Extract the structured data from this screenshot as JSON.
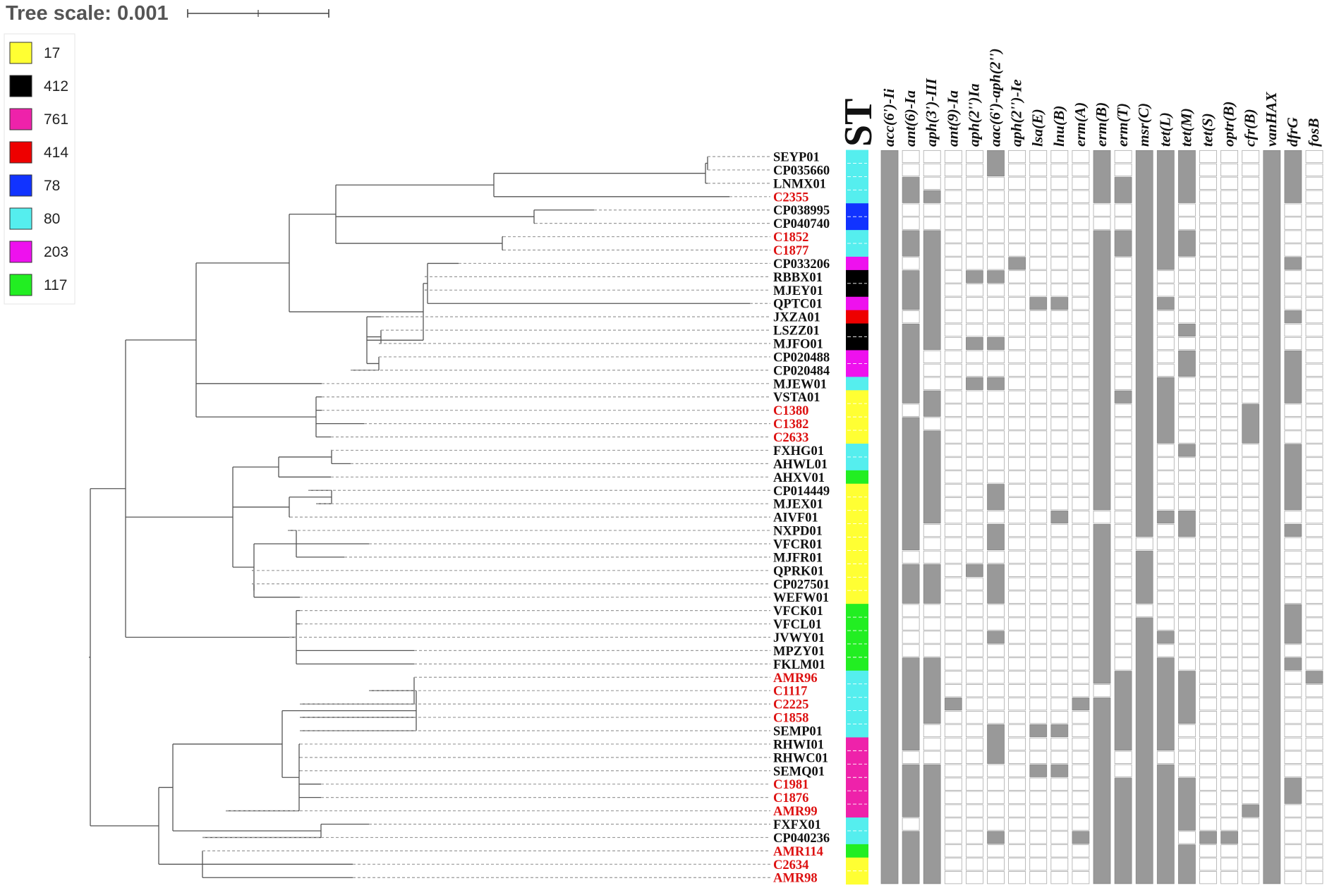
{
  "tree_scale": {
    "label": "Tree scale: 0.001"
  },
  "st_header": "ST",
  "colors": {
    "label_ref": "#111111",
    "label_study": "#dd1111",
    "presence": "#999999",
    "absence": "#ffffff"
  },
  "legend": [
    {
      "label": "17",
      "color": "#ffff33"
    },
    {
      "label": "412",
      "color": "#000000"
    },
    {
      "label": "761",
      "color": "#ee22aa"
    },
    {
      "label": "414",
      "color": "#ee0000"
    },
    {
      "label": "78",
      "color": "#1133ff"
    },
    {
      "label": "80",
      "color": "#55eeee"
    },
    {
      "label": "203",
      "color": "#ee11ee"
    },
    {
      "label": "117",
      "color": "#22ee22"
    }
  ],
  "genes": [
    "acc(6')-Ii",
    "ant(6)-Ia",
    "aph(3')-III",
    "ant(9)-Ia",
    "aph(2'')Ia",
    "aac(6')-aph(2'')",
    "aph(2'')-Ie",
    "lsa(E)",
    "lnu(B)",
    "erm(A)",
    "erm(B)",
    "erm(T)",
    "msr(C)",
    "tet(L)",
    "tet(M)",
    "tet(S)",
    "optr(B)",
    "cfr(B)",
    "vanHAX",
    "dfrG",
    "fosB"
  ],
  "isolates": [
    {
      "name": "SEYP01",
      "study": false,
      "st": "80",
      "genes": [
        1,
        0,
        0,
        0,
        0,
        1,
        0,
        0,
        0,
        0,
        1,
        0,
        1,
        1,
        1,
        0,
        0,
        0,
        1,
        1,
        0
      ]
    },
    {
      "name": "CP035660",
      "study": false,
      "st": "80",
      "genes": [
        1,
        0,
        0,
        0,
        0,
        1,
        0,
        0,
        0,
        0,
        1,
        0,
        1,
        1,
        1,
        0,
        0,
        0,
        1,
        1,
        0
      ]
    },
    {
      "name": "LNMX01",
      "study": false,
      "st": "80",
      "genes": [
        1,
        1,
        0,
        0,
        0,
        0,
        0,
        0,
        0,
        0,
        1,
        1,
        1,
        1,
        1,
        0,
        0,
        0,
        1,
        1,
        0
      ]
    },
    {
      "name": "C2355",
      "study": true,
      "st": "80",
      "genes": [
        1,
        1,
        1,
        0,
        0,
        0,
        0,
        0,
        0,
        0,
        1,
        1,
        1,
        1,
        1,
        0,
        0,
        0,
        1,
        1,
        0
      ]
    },
    {
      "name": "CP038995",
      "study": false,
      "st": "78",
      "genes": [
        1,
        0,
        0,
        0,
        0,
        0,
        0,
        0,
        0,
        0,
        0,
        0,
        1,
        1,
        0,
        0,
        0,
        0,
        1,
        0,
        0
      ]
    },
    {
      "name": "CP040740",
      "study": false,
      "st": "78",
      "genes": [
        1,
        0,
        0,
        0,
        0,
        0,
        0,
        0,
        0,
        0,
        0,
        0,
        1,
        1,
        0,
        0,
        0,
        0,
        1,
        0,
        0
      ]
    },
    {
      "name": "C1852",
      "study": true,
      "st": "80",
      "genes": [
        1,
        1,
        1,
        0,
        0,
        0,
        0,
        0,
        0,
        0,
        1,
        1,
        1,
        1,
        1,
        0,
        0,
        0,
        1,
        0,
        0
      ]
    },
    {
      "name": "C1877",
      "study": true,
      "st": "80",
      "genes": [
        1,
        1,
        1,
        0,
        0,
        0,
        0,
        0,
        0,
        0,
        1,
        1,
        1,
        1,
        1,
        0,
        0,
        0,
        1,
        0,
        0
      ]
    },
    {
      "name": "CP033206",
      "study": false,
      "st": "203",
      "genes": [
        1,
        0,
        1,
        0,
        0,
        0,
        1,
        0,
        0,
        0,
        1,
        0,
        1,
        1,
        0,
        0,
        0,
        0,
        1,
        1,
        0
      ]
    },
    {
      "name": "RBBX01",
      "study": false,
      "st": "412",
      "genes": [
        1,
        1,
        1,
        0,
        1,
        1,
        0,
        0,
        0,
        0,
        1,
        0,
        1,
        0,
        0,
        0,
        0,
        0,
        1,
        0,
        0
      ]
    },
    {
      "name": "MJEY01",
      "study": false,
      "st": "412",
      "genes": [
        1,
        1,
        1,
        0,
        0,
        0,
        0,
        0,
        0,
        0,
        1,
        0,
        1,
        0,
        0,
        0,
        0,
        0,
        1,
        0,
        0
      ]
    },
    {
      "name": "QPTC01",
      "study": false,
      "st": "203",
      "genes": [
        1,
        1,
        1,
        0,
        0,
        0,
        0,
        1,
        1,
        0,
        1,
        0,
        1,
        1,
        0,
        0,
        0,
        0,
        1,
        0,
        0
      ]
    },
    {
      "name": "JXZA01",
      "study": false,
      "st": "414",
      "genes": [
        1,
        0,
        1,
        0,
        0,
        0,
        0,
        0,
        0,
        0,
        1,
        0,
        1,
        0,
        0,
        0,
        0,
        0,
        1,
        1,
        0
      ]
    },
    {
      "name": "LSZZ01",
      "study": false,
      "st": "412",
      "genes": [
        1,
        1,
        1,
        0,
        0,
        0,
        0,
        0,
        0,
        0,
        1,
        0,
        1,
        0,
        1,
        0,
        0,
        0,
        1,
        0,
        0
      ]
    },
    {
      "name": "MJFO01",
      "study": false,
      "st": "412",
      "genes": [
        1,
        1,
        1,
        0,
        1,
        1,
        0,
        0,
        0,
        0,
        1,
        0,
        1,
        0,
        0,
        0,
        0,
        0,
        1,
        0,
        0
      ]
    },
    {
      "name": "CP020488",
      "study": false,
      "st": "203",
      "genes": [
        1,
        1,
        0,
        0,
        0,
        0,
        0,
        0,
        0,
        0,
        1,
        0,
        1,
        0,
        1,
        0,
        0,
        0,
        1,
        1,
        0
      ]
    },
    {
      "name": "CP020484",
      "study": false,
      "st": "203",
      "genes": [
        1,
        1,
        0,
        0,
        0,
        0,
        0,
        0,
        0,
        0,
        1,
        0,
        1,
        0,
        1,
        0,
        0,
        0,
        1,
        1,
        0
      ]
    },
    {
      "name": "MJEW01",
      "study": false,
      "st": "80",
      "genes": [
        1,
        1,
        0,
        0,
        1,
        1,
        0,
        0,
        0,
        0,
        1,
        0,
        1,
        1,
        0,
        0,
        0,
        0,
        1,
        1,
        0
      ]
    },
    {
      "name": "VSTA01",
      "study": false,
      "st": "17",
      "genes": [
        1,
        1,
        1,
        0,
        0,
        0,
        0,
        0,
        0,
        0,
        1,
        1,
        1,
        1,
        0,
        0,
        0,
        0,
        1,
        1,
        0
      ]
    },
    {
      "name": "C1380",
      "study": true,
      "st": "17",
      "genes": [
        1,
        0,
        1,
        0,
        0,
        0,
        0,
        0,
        0,
        0,
        1,
        0,
        1,
        1,
        0,
        0,
        0,
        1,
        1,
        0,
        0
      ]
    },
    {
      "name": "C1382",
      "study": true,
      "st": "17",
      "genes": [
        1,
        1,
        0,
        0,
        0,
        0,
        0,
        0,
        0,
        0,
        1,
        0,
        1,
        1,
        0,
        0,
        0,
        1,
        1,
        0,
        0
      ]
    },
    {
      "name": "C2633",
      "study": true,
      "st": "17",
      "genes": [
        1,
        1,
        1,
        0,
        0,
        0,
        0,
        0,
        0,
        0,
        1,
        0,
        1,
        1,
        0,
        0,
        0,
        1,
        1,
        0,
        0
      ]
    },
    {
      "name": "FXHG01",
      "study": false,
      "st": "80",
      "genes": [
        1,
        1,
        1,
        0,
        0,
        0,
        0,
        0,
        0,
        0,
        1,
        0,
        1,
        0,
        1,
        0,
        0,
        0,
        1,
        1,
        0
      ]
    },
    {
      "name": "AHWL01",
      "study": false,
      "st": "80",
      "genes": [
        1,
        1,
        1,
        0,
        0,
        0,
        0,
        0,
        0,
        0,
        1,
        0,
        1,
        0,
        0,
        0,
        0,
        0,
        1,
        1,
        0
      ]
    },
    {
      "name": "AHXV01",
      "study": false,
      "st": "117",
      "genes": [
        1,
        1,
        1,
        0,
        0,
        0,
        0,
        0,
        0,
        0,
        1,
        0,
        1,
        0,
        0,
        0,
        0,
        0,
        1,
        1,
        0
      ]
    },
    {
      "name": "CP014449",
      "study": false,
      "st": "17",
      "genes": [
        1,
        1,
        1,
        0,
        0,
        1,
        0,
        0,
        0,
        0,
        1,
        0,
        1,
        0,
        0,
        0,
        0,
        0,
        1,
        1,
        0
      ]
    },
    {
      "name": "MJEX01",
      "study": false,
      "st": "17",
      "genes": [
        1,
        1,
        1,
        0,
        0,
        1,
        0,
        0,
        0,
        0,
        1,
        0,
        1,
        0,
        0,
        0,
        0,
        0,
        1,
        1,
        0
      ]
    },
    {
      "name": "AIVF01",
      "study": false,
      "st": "17",
      "genes": [
        1,
        1,
        1,
        0,
        0,
        0,
        0,
        0,
        1,
        0,
        0,
        0,
        1,
        1,
        1,
        0,
        0,
        0,
        1,
        0,
        0
      ]
    },
    {
      "name": "NXPD01",
      "study": false,
      "st": "17",
      "genes": [
        1,
        1,
        0,
        0,
        0,
        1,
        0,
        0,
        0,
        0,
        1,
        0,
        1,
        0,
        1,
        0,
        0,
        0,
        1,
        1,
        0
      ]
    },
    {
      "name": "VFCR01",
      "study": false,
      "st": "17",
      "genes": [
        1,
        1,
        0,
        0,
        0,
        1,
        0,
        0,
        0,
        0,
        1,
        0,
        0,
        0,
        0,
        0,
        0,
        0,
        1,
        0,
        0
      ]
    },
    {
      "name": "MJFR01",
      "study": false,
      "st": "17",
      "genes": [
        1,
        0,
        0,
        0,
        0,
        0,
        0,
        0,
        0,
        0,
        1,
        0,
        1,
        0,
        0,
        0,
        0,
        0,
        1,
        0,
        0
      ]
    },
    {
      "name": "QPRK01",
      "study": false,
      "st": "17",
      "genes": [
        1,
        1,
        1,
        0,
        1,
        1,
        0,
        0,
        0,
        0,
        1,
        0,
        1,
        0,
        0,
        0,
        0,
        0,
        1,
        0,
        0
      ]
    },
    {
      "name": "CP027501",
      "study": false,
      "st": "17",
      "genes": [
        1,
        1,
        1,
        0,
        0,
        1,
        0,
        0,
        0,
        0,
        1,
        0,
        1,
        0,
        0,
        0,
        0,
        0,
        1,
        0,
        0
      ]
    },
    {
      "name": "WEFW01",
      "study": false,
      "st": "17",
      "genes": [
        1,
        1,
        1,
        0,
        0,
        1,
        0,
        0,
        0,
        0,
        1,
        0,
        1,
        0,
        0,
        0,
        0,
        0,
        1,
        0,
        0
      ]
    },
    {
      "name": "VFCK01",
      "study": false,
      "st": "117",
      "genes": [
        1,
        0,
        0,
        0,
        0,
        0,
        0,
        0,
        0,
        0,
        1,
        0,
        0,
        0,
        0,
        0,
        0,
        0,
        1,
        1,
        0
      ]
    },
    {
      "name": "VFCL01",
      "study": false,
      "st": "117",
      "genes": [
        1,
        0,
        0,
        0,
        0,
        0,
        0,
        0,
        0,
        0,
        1,
        0,
        1,
        0,
        0,
        0,
        0,
        0,
        1,
        1,
        0
      ]
    },
    {
      "name": "JVWY01",
      "study": false,
      "st": "117",
      "genes": [
        1,
        0,
        0,
        0,
        0,
        1,
        0,
        0,
        0,
        0,
        1,
        0,
        1,
        1,
        0,
        0,
        0,
        0,
        1,
        1,
        0
      ]
    },
    {
      "name": "MPZY01",
      "study": false,
      "st": "117",
      "genes": [
        1,
        0,
        0,
        0,
        0,
        0,
        0,
        0,
        0,
        0,
        1,
        0,
        1,
        0,
        0,
        0,
        0,
        0,
        1,
        0,
        0
      ]
    },
    {
      "name": "FKLM01",
      "study": false,
      "st": "117",
      "genes": [
        1,
        1,
        1,
        0,
        0,
        0,
        0,
        0,
        0,
        0,
        1,
        0,
        1,
        1,
        0,
        0,
        0,
        0,
        1,
        1,
        0
      ]
    },
    {
      "name": "AMR96",
      "study": true,
      "st": "80",
      "genes": [
        1,
        1,
        1,
        0,
        0,
        0,
        0,
        0,
        0,
        0,
        1,
        1,
        1,
        1,
        1,
        0,
        0,
        0,
        1,
        0,
        1
      ]
    },
    {
      "name": "C1117",
      "study": true,
      "st": "80",
      "genes": [
        1,
        1,
        1,
        0,
        0,
        0,
        0,
        0,
        0,
        0,
        0,
        1,
        1,
        1,
        1,
        0,
        0,
        0,
        1,
        0,
        0
      ]
    },
    {
      "name": "C2225",
      "study": true,
      "st": "80",
      "genes": [
        1,
        1,
        1,
        1,
        0,
        0,
        0,
        0,
        0,
        1,
        1,
        1,
        1,
        1,
        1,
        0,
        0,
        0,
        1,
        0,
        0
      ]
    },
    {
      "name": "C1858",
      "study": true,
      "st": "80",
      "genes": [
        1,
        1,
        1,
        0,
        0,
        0,
        0,
        0,
        0,
        0,
        1,
        1,
        1,
        1,
        1,
        0,
        0,
        0,
        1,
        0,
        0
      ]
    },
    {
      "name": "SEMP01",
      "study": false,
      "st": "80",
      "genes": [
        1,
        1,
        0,
        0,
        0,
        1,
        0,
        1,
        1,
        0,
        1,
        1,
        1,
        1,
        0,
        0,
        0,
        0,
        1,
        0,
        0
      ]
    },
    {
      "name": "RHWI01",
      "study": false,
      "st": "761",
      "genes": [
        1,
        1,
        0,
        0,
        0,
        1,
        0,
        0,
        0,
        0,
        1,
        1,
        1,
        1,
        0,
        0,
        0,
        0,
        1,
        0,
        0
      ]
    },
    {
      "name": "RHWC01",
      "study": false,
      "st": "761",
      "genes": [
        1,
        0,
        0,
        0,
        0,
        1,
        0,
        0,
        0,
        0,
        1,
        0,
        1,
        0,
        0,
        0,
        0,
        0,
        1,
        0,
        0
      ]
    },
    {
      "name": "SEMQ01",
      "study": false,
      "st": "761",
      "genes": [
        1,
        1,
        1,
        0,
        0,
        0,
        0,
        1,
        1,
        0,
        1,
        0,
        1,
        1,
        0,
        0,
        0,
        0,
        1,
        0,
        0
      ]
    },
    {
      "name": "C1981",
      "study": true,
      "st": "761",
      "genes": [
        1,
        1,
        1,
        0,
        0,
        0,
        0,
        0,
        0,
        0,
        1,
        1,
        1,
        1,
        1,
        0,
        0,
        0,
        1,
        1,
        0
      ]
    },
    {
      "name": "C1876",
      "study": true,
      "st": "761",
      "genes": [
        1,
        1,
        1,
        0,
        0,
        0,
        0,
        0,
        0,
        0,
        1,
        1,
        1,
        1,
        1,
        0,
        0,
        0,
        1,
        1,
        0
      ]
    },
    {
      "name": "AMR99",
      "study": true,
      "st": "761",
      "genes": [
        1,
        1,
        1,
        0,
        0,
        0,
        0,
        0,
        0,
        0,
        1,
        1,
        1,
        1,
        1,
        0,
        0,
        1,
        1,
        0,
        0
      ]
    },
    {
      "name": "FXFX01",
      "study": false,
      "st": "80",
      "genes": [
        1,
        0,
        1,
        0,
        0,
        0,
        0,
        0,
        0,
        0,
        1,
        1,
        1,
        1,
        1,
        0,
        0,
        0,
        1,
        0,
        0
      ]
    },
    {
      "name": "CP040236",
      "study": false,
      "st": "80",
      "genes": [
        1,
        1,
        1,
        0,
        0,
        1,
        0,
        0,
        0,
        1,
        1,
        1,
        1,
        1,
        0,
        1,
        1,
        0,
        1,
        0,
        0
      ]
    },
    {
      "name": "AMR114",
      "study": true,
      "st": "117",
      "genes": [
        1,
        1,
        1,
        0,
        0,
        0,
        0,
        0,
        0,
        0,
        1,
        1,
        1,
        1,
        1,
        0,
        0,
        0,
        1,
        0,
        0
      ]
    },
    {
      "name": "C2634",
      "study": true,
      "st": "17",
      "genes": [
        1,
        1,
        1,
        0,
        0,
        0,
        0,
        0,
        0,
        0,
        1,
        1,
        1,
        1,
        1,
        0,
        0,
        0,
        1,
        0,
        0
      ]
    },
    {
      "name": "AMR98",
      "study": true,
      "st": "17",
      "genes": [
        1,
        1,
        1,
        0,
        0,
        0,
        0,
        0,
        0,
        0,
        1,
        1,
        1,
        1,
        1,
        0,
        0,
        0,
        1,
        0,
        0
      ]
    }
  ]
}
